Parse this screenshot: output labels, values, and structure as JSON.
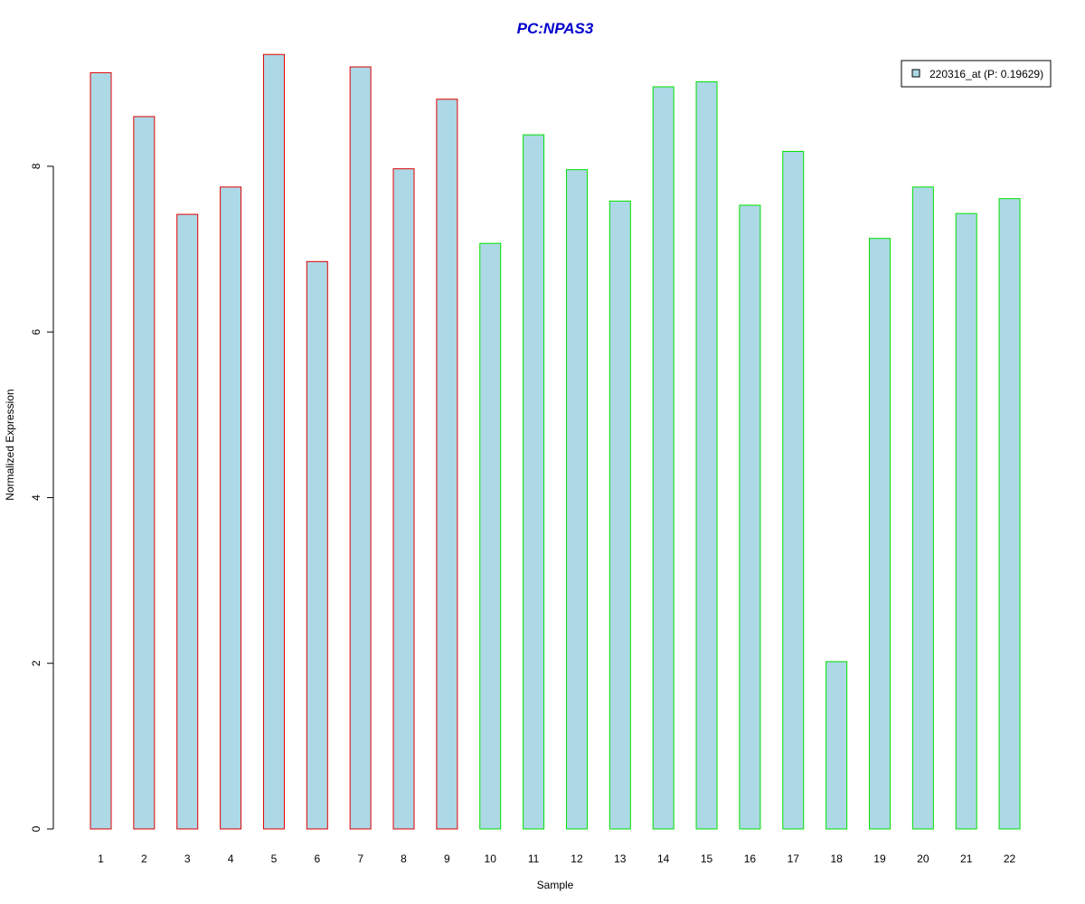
{
  "chart_data": {
    "type": "bar",
    "title": "PC:NPAS3",
    "xlabel": "Sample",
    "ylabel": "Normalized Expression",
    "ylim": [
      0,
      9.5
    ],
    "yticks": [
      0,
      2,
      4,
      6,
      8
    ],
    "categories": [
      "1",
      "2",
      "3",
      "4",
      "5",
      "6",
      "7",
      "8",
      "9",
      "10",
      "11",
      "12",
      "13",
      "14",
      "15",
      "16",
      "17",
      "18",
      "19",
      "20",
      "21",
      "22"
    ],
    "values": [
      9.13,
      8.6,
      7.42,
      7.75,
      9.35,
      6.85,
      9.2,
      7.97,
      8.81,
      7.07,
      8.38,
      7.96,
      7.58,
      8.96,
      9.02,
      7.53,
      8.18,
      2.02,
      7.13,
      7.75,
      7.43,
      7.61
    ],
    "series": [
      {
        "name": "220316_at (P: 0.19629)",
        "values": [
          9.13,
          8.6,
          7.42,
          7.75,
          9.35,
          6.85,
          9.2,
          7.97,
          8.81,
          7.07,
          8.38,
          7.96,
          7.58,
          8.96,
          9.02,
          7.53,
          8.18,
          2.02,
          7.13,
          7.75,
          7.43,
          7.61
        ]
      }
    ],
    "groups": [
      {
        "samples": [
          "1",
          "2",
          "3",
          "4",
          "5",
          "6",
          "7",
          "8",
          "9"
        ],
        "border_color": "#e00000"
      },
      {
        "samples": [
          "10",
          "11",
          "12",
          "13",
          "14",
          "15",
          "16",
          "17",
          "18",
          "19",
          "20",
          "21",
          "22"
        ],
        "border_color": "#00e000"
      }
    ],
    "legend": {
      "label": "220316_at (P: 0.19629)",
      "placement": "top-right"
    },
    "colors": {
      "bar_fill": "#add8e6",
      "title": "#0000cc"
    },
    "grid": false
  }
}
